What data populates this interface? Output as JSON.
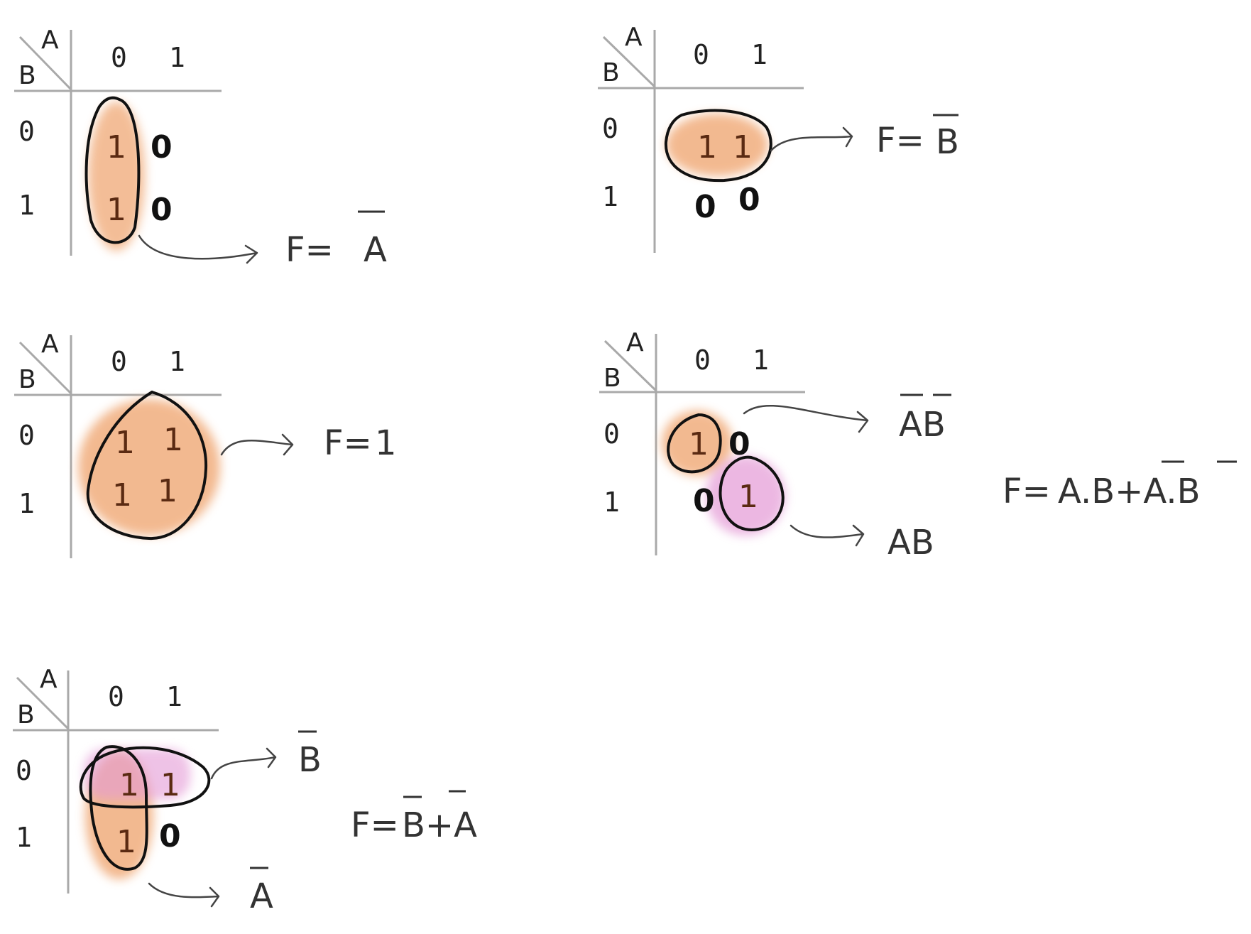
{
  "diagrams": [
    {
      "axis_a": "A",
      "axis_b": "B",
      "col_labels": [
        "0",
        "1"
      ],
      "row_labels": [
        "0",
        "1"
      ],
      "cells": [
        [
          "1",
          "0"
        ],
        [
          "1",
          "0"
        ]
      ],
      "result": {
        "prefix": "F=",
        "term": "A"
      }
    },
    {
      "axis_a": "A",
      "axis_b": "B",
      "col_labels": [
        "0",
        "1"
      ],
      "row_labels": [
        "0",
        "1"
      ],
      "cells": [
        [
          "1",
          "1"
        ],
        [
          "0",
          "0"
        ]
      ],
      "result": {
        "prefix": "F=",
        "term": "B"
      }
    },
    {
      "axis_a": "A",
      "axis_b": "B",
      "col_labels": [
        "0",
        "1"
      ],
      "row_labels": [
        "0",
        "1"
      ],
      "cells": [
        [
          "1",
          "1"
        ],
        [
          "1",
          "1"
        ]
      ],
      "result": {
        "prefix": "F=",
        "term": "1"
      }
    },
    {
      "axis_a": "A",
      "axis_b": "B",
      "col_labels": [
        "0",
        "1"
      ],
      "row_labels": [
        "0",
        "1"
      ],
      "cells": [
        [
          "1",
          "0"
        ],
        [
          "0",
          "1"
        ]
      ],
      "group_terms": [
        "AB",
        "AB"
      ],
      "result": {
        "prefix": "F=",
        "expression": "A.B+A.B"
      }
    },
    {
      "axis_a": "A",
      "axis_b": "B",
      "col_labels": [
        "0",
        "1"
      ],
      "row_labels": [
        "0",
        "1"
      ],
      "cells": [
        [
          "1",
          "1"
        ],
        [
          "1",
          "0"
        ]
      ],
      "group_terms": [
        "B",
        "A"
      ],
      "result": {
        "prefix": "F=",
        "expression": "B+A"
      }
    }
  ],
  "colors": {
    "grid": "#a9a9a9",
    "orange_fill": "#f0a875",
    "pink_fill": "#e49ad6",
    "outline": "#111111"
  }
}
